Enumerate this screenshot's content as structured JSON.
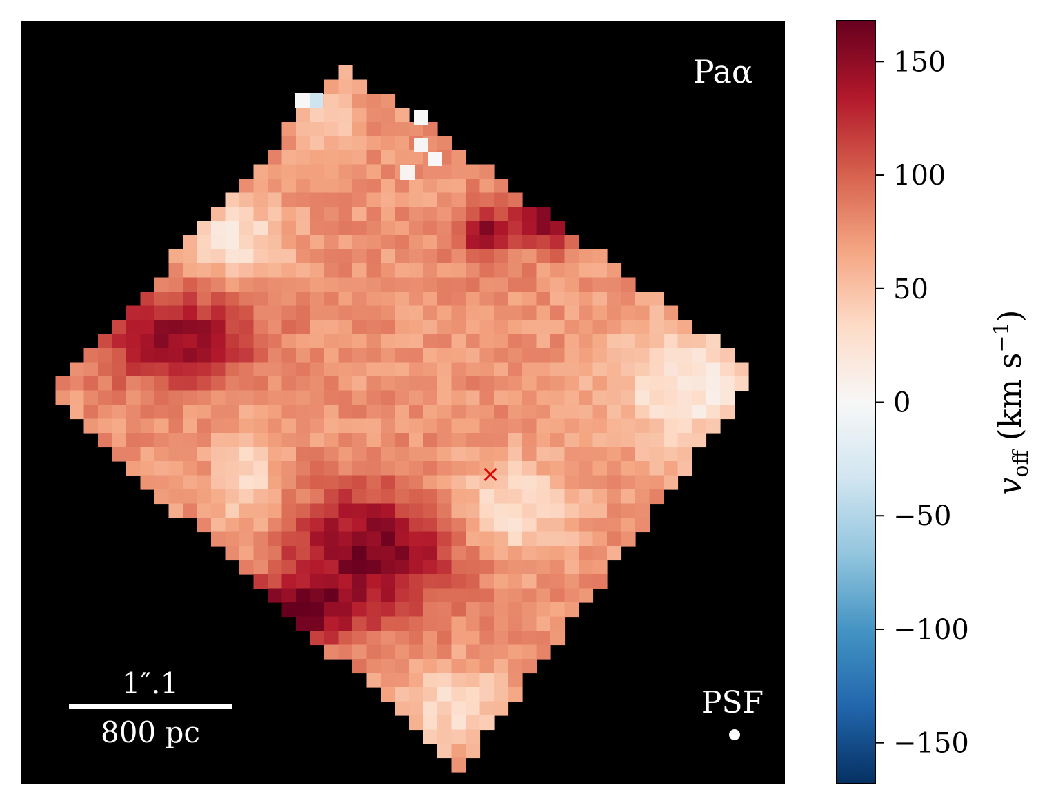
{
  "chart_data": {
    "type": "heatmap",
    "title": "Paα",
    "colorbar": {
      "label": "v_off (km s^-1)",
      "label_main": "v",
      "label_sub": "off",
      "label_units": "(km s",
      "label_exp": "−1",
      "label_close": ")",
      "range": [
        -168,
        168
      ],
      "ticks": [
        150,
        100,
        50,
        0,
        -50,
        -100,
        -150
      ],
      "tick_labels": [
        "150",
        "100",
        "50",
        "0",
        "−50",
        "−100",
        "−150"
      ],
      "colormap": "RdBu_r",
      "stops": [
        "#053061",
        "#2166ac",
        "#4393c3",
        "#92c5de",
        "#d1e5f0",
        "#f7f7f7",
        "#fddbc7",
        "#f4a582",
        "#d6604d",
        "#b2182b",
        "#67001f"
      ]
    },
    "grid": false,
    "background": "#000000",
    "map_shape": "diamond (tilted square field of view)",
    "center_marker": "×",
    "center_marker_color": "#dd0000",
    "scale_bar": {
      "angular": "1″.1",
      "physical": "800 pc"
    },
    "psf_label": "PSF",
    "velocity_regions_km_s": [
      {
        "region": "upper-left lobe",
        "v_off": 150
      },
      {
        "region": "lower-center lobe",
        "v_off": 165
      },
      {
        "region": "upper-right knots",
        "v_off": 160
      },
      {
        "region": "right wing",
        "v_off": 15
      },
      {
        "region": "left-upper interior",
        "v_off": 20
      },
      {
        "region": "center-right (near ×)",
        "v_off": 25
      },
      {
        "region": "top edge bluish pixel",
        "v_off": -35
      },
      {
        "region": "typical body",
        "v_off": 75
      }
    ]
  }
}
